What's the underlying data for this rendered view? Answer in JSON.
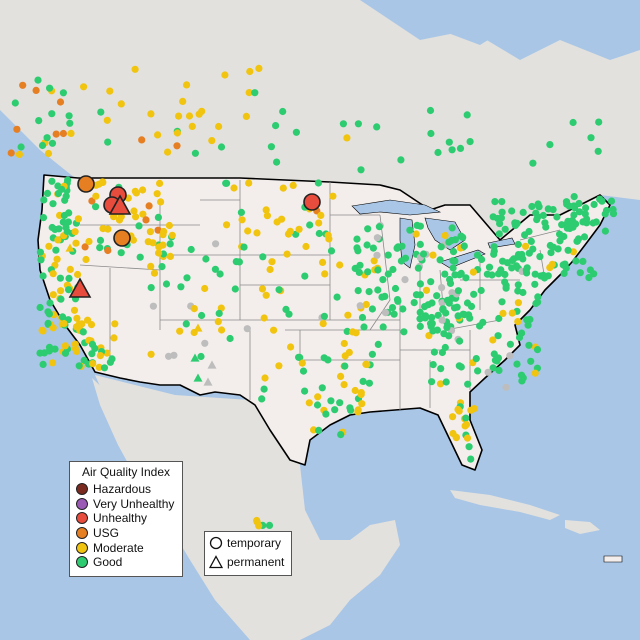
{
  "legend": {
    "title": "Air Quality Index",
    "categories": [
      {
        "label": "Hazardous",
        "color": "#7a2a1e"
      },
      {
        "label": "Very Unhealthy",
        "color": "#9b59b6"
      },
      {
        "label": "Unhealthy",
        "color": "#e74c3c"
      },
      {
        "label": "USG",
        "color": "#e67e22"
      },
      {
        "label": "Moderate",
        "color": "#f1c40f"
      },
      {
        "label": "Good",
        "color": "#2ecc71"
      }
    ]
  },
  "monitor_types": [
    {
      "label": "temporary",
      "shape": "circle"
    },
    {
      "label": "permanent",
      "shape": "triangle"
    }
  ],
  "colors": {
    "water": "#a9c6e6",
    "us_land": "#f3eeec",
    "other_land": "#e2e1dd",
    "border": "#000000",
    "state_lines": "#8a8a8a",
    "no_data": "#bdbdbd"
  }
}
